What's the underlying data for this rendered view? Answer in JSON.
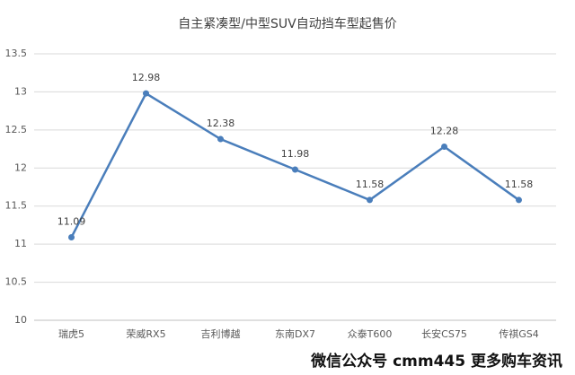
{
  "chart_data": {
    "type": "line",
    "title": "自主紧凑型/中型SUV自动挡车型起售价",
    "categories": [
      "瑞虎5",
      "荣威RX5",
      "吉利博越",
      "东南DX7",
      "众泰T600",
      "长安CS75",
      "传祺GS4"
    ],
    "series": [
      {
        "color": "#4a7ebb",
        "values": [
          11.09,
          12.98,
          12.38,
          11.98,
          11.58,
          12.28,
          11.58
        ]
      }
    ],
    "ylim": [
      10,
      13.5
    ],
    "yticks": [
      10,
      10.5,
      11,
      11.5,
      12,
      12.5,
      13,
      13.5
    ],
    "grid": true
  },
  "watermark": "微信公众号 cmm445 更多购车资讯"
}
